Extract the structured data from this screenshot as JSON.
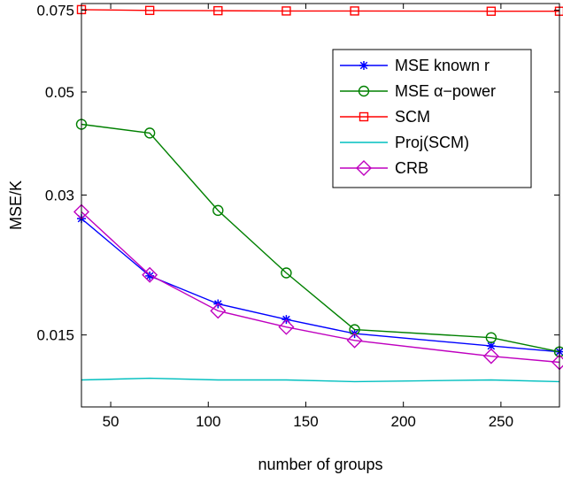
{
  "chart_data": {
    "type": "line",
    "title": "",
    "xlabel": "number of groups",
    "ylabel": "MSE/K",
    "xlim": [
      35,
      280
    ],
    "ylim": [
      0.0105,
      0.0775
    ],
    "y_scale": "log",
    "grid": false,
    "legend_position": "top-right",
    "x_ticks": [
      50,
      100,
      150,
      200,
      250
    ],
    "x_tick_labels": [
      "50",
      "100",
      "150",
      "200",
      "250"
    ],
    "y_ticks": [
      0.015,
      0.03,
      0.05,
      0.075
    ],
    "y_tick_labels": [
      "0.015",
      "0.03",
      "0.05",
      "0.075"
    ],
    "series": [
      {
        "name": "MSE known r",
        "color": "#0000ff",
        "marker": "star",
        "x": [
          35,
          70,
          105,
          140,
          175,
          245,
          280
        ],
        "y": [
          0.0267,
          0.0201,
          0.0175,
          0.0162,
          0.0151,
          0.0142,
          0.0138
        ]
      },
      {
        "name": "MSE α−power",
        "color": "#008000",
        "marker": "circle",
        "x": [
          35,
          70,
          105,
          140,
          175,
          245,
          280
        ],
        "y": [
          0.0426,
          0.0408,
          0.0278,
          0.0204,
          0.0154,
          0.0148,
          0.0138
        ]
      },
      {
        "name": "SCM",
        "color": "#ff0000",
        "marker": "square",
        "x": [
          35,
          70,
          105,
          140,
          175,
          245,
          280
        ],
        "y": [
          0.0752,
          0.0749,
          0.0748,
          0.0747,
          0.0747,
          0.0746,
          0.0746
        ]
      },
      {
        "name": "Proj(SCM)",
        "color": "#00bfbf",
        "marker": "none",
        "x": [
          35,
          70,
          105,
          140,
          175,
          245,
          280
        ],
        "y": [
          0.012,
          0.0121,
          0.012,
          0.012,
          0.0119,
          0.012,
          0.0119
        ]
      },
      {
        "name": "CRB",
        "color": "#bf00bf",
        "marker": "diamond",
        "x": [
          35,
          70,
          105,
          140,
          175,
          245,
          280
        ],
        "y": [
          0.0276,
          0.0202,
          0.0169,
          0.0156,
          0.0146,
          0.0135,
          0.0131
        ]
      }
    ]
  }
}
